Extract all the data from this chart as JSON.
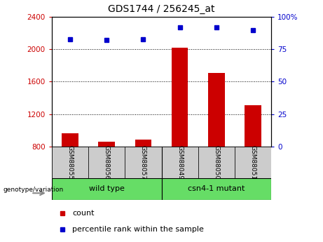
{
  "title": "GDS1744 / 256245_at",
  "samples": [
    "GSM88055",
    "GSM88056",
    "GSM88057",
    "GSM88049",
    "GSM88050",
    "GSM88051"
  ],
  "group_labels": [
    "wild type",
    "csn4-1 mutant"
  ],
  "counts": [
    960,
    860,
    880,
    2020,
    1710,
    1310
  ],
  "percentile_ranks": [
    83,
    82,
    83,
    92,
    92,
    90
  ],
  "ylim_left": [
    800,
    2400
  ],
  "ylim_right": [
    0,
    100
  ],
  "yticks_left": [
    800,
    1200,
    1600,
    2000,
    2400
  ],
  "yticks_right": [
    0,
    25,
    50,
    75,
    100
  ],
  "bar_color": "#cc0000",
  "dot_color": "#0000cc",
  "bg_color_green": "#66dd66",
  "bg_color_gray": "#cccccc",
  "tick_color_left": "#cc0000",
  "tick_color_right": "#0000cc",
  "legend_count_color": "#cc0000",
  "legend_pct_color": "#0000cc",
  "label_genotype": "genotype/variation",
  "legend_count": "count",
  "legend_pct": "percentile rank within the sample"
}
